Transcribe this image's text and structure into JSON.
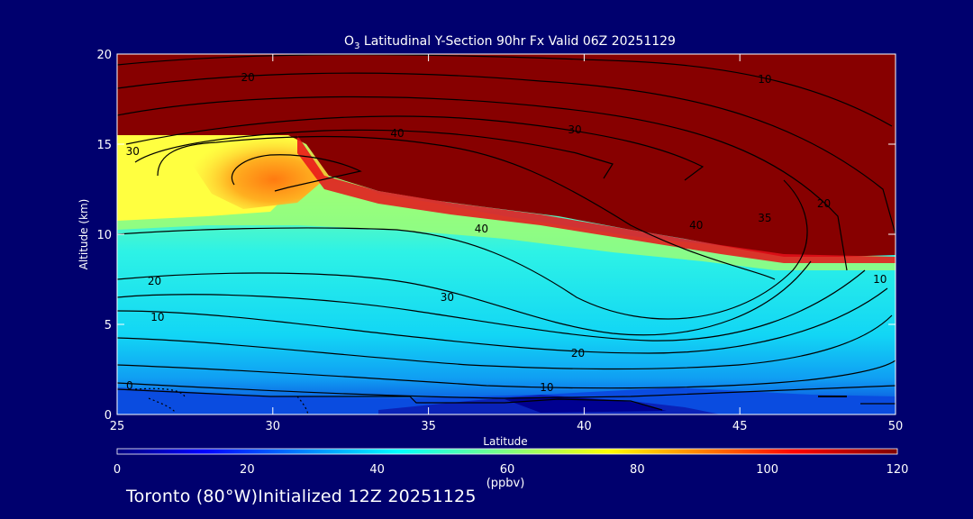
{
  "colors": {
    "background": "#00006e",
    "axis": "#ffffff",
    "contour": "#000000"
  },
  "footer": {
    "location": "Toronto (80°W)Initialized 12Z 20251125"
  },
  "chart_data": {
    "type": "heatmap",
    "title_prefix": "O",
    "title_subscript": "3",
    "title_rest": " Latitudinal Y-Section 90hr  Fx Valid 06Z 20251129",
    "xlabel": "Latitude",
    "ylabel": "Altitude (km)",
    "xlim": [
      25,
      50
    ],
    "ylim": [
      0,
      20
    ],
    "x_ticks": [
      "25",
      "30",
      "35",
      "40",
      "45",
      "50"
    ],
    "y_ticks": [
      "0",
      "5",
      "10",
      "15",
      "20"
    ],
    "colorbar": {
      "label": "(ppbv)",
      "range": [
        0,
        120
      ],
      "ticks": [
        "0",
        "20",
        "40",
        "60",
        "80",
        "100",
        "120"
      ]
    },
    "field_description_units": "ppbv",
    "contour_labels": [
      {
        "text": "20",
        "lat": 29.2,
        "alt": 18.7
      },
      {
        "text": "10",
        "lat": 45.8,
        "alt": 18.6
      },
      {
        "text": "40",
        "lat": 34.0,
        "alt": 15.6
      },
      {
        "text": "30",
        "lat": 39.7,
        "alt": 15.8
      },
      {
        "text": "30",
        "lat": 25.5,
        "alt": 14.6
      },
      {
        "text": "40",
        "lat": 36.7,
        "alt": 10.3
      },
      {
        "text": "40",
        "lat": 43.6,
        "alt": 10.5
      },
      {
        "text": "35",
        "lat": 45.8,
        "alt": 10.9
      },
      {
        "text": "20",
        "lat": 47.7,
        "alt": 11.7
      },
      {
        "text": "20",
        "lat": 26.2,
        "alt": 7.4
      },
      {
        "text": "10",
        "lat": 26.3,
        "alt": 5.4
      },
      {
        "text": "30",
        "lat": 35.6,
        "alt": 6.5
      },
      {
        "text": "20",
        "lat": 39.8,
        "alt": 3.4
      },
      {
        "text": "10",
        "lat": 38.8,
        "alt": 1.5
      },
      {
        "text": "10",
        "lat": 49.5,
        "alt": 7.5
      },
      {
        "text": "0",
        "lat": 25.4,
        "alt": 1.6
      }
    ]
  }
}
